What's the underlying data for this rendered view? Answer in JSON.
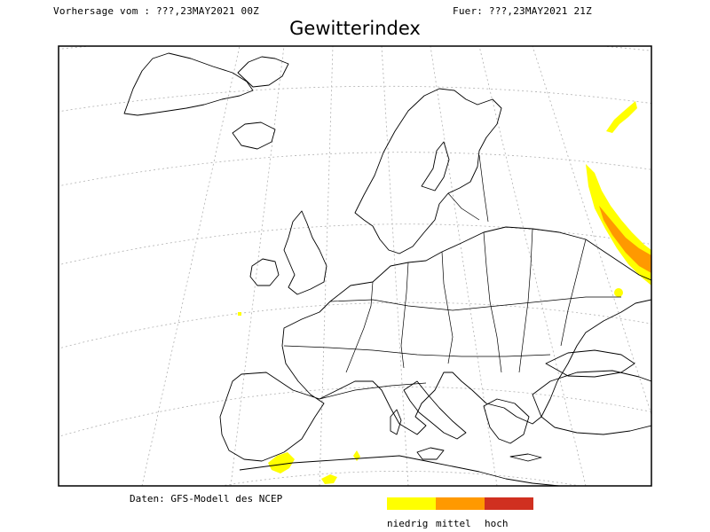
{
  "header": {
    "left": "Vorhersage vom : ???,23MAY2021 00Z",
    "right": "Fuer: ???,23MAY2021 21Z"
  },
  "title": "Gewitterindex",
  "source": "Daten: GFS-Modell des NCEP",
  "legend": [
    {
      "label": "niedrig",
      "color": "#ffff00"
    },
    {
      "label": "mittel",
      "color": "#ff9900"
    },
    {
      "label": "hoch",
      "color": "#d03020"
    }
  ],
  "chart_data": {
    "type": "heatmap",
    "title": "Gewitterindex",
    "subject": "Europe, thunderstorm index forecast",
    "categories": [
      "niedrig",
      "mittel",
      "hoch"
    ],
    "regions": [
      {
        "area": "western Russia / NE corner of map",
        "level": "niedrig"
      },
      {
        "area": "western Russia / NE corner of map",
        "level": "mittel"
      },
      {
        "area": "southern Spain",
        "level": "niedrig"
      },
      {
        "area": "northern Algeria",
        "level": "niedrig"
      },
      {
        "area": "northern Tunisia coast",
        "level": "niedrig"
      },
      {
        "area": "northern Russia (top-right)",
        "level": "niedrig"
      }
    ],
    "grid": true
  }
}
